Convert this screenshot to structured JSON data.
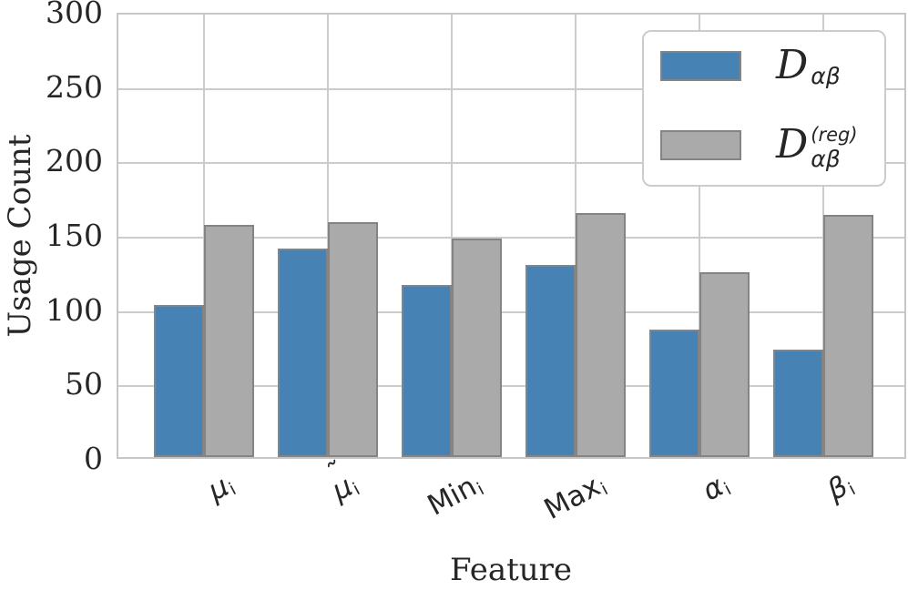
{
  "chart_data": {
    "type": "bar",
    "title": "",
    "xlabel": "Feature",
    "ylabel": "Usage Count",
    "ylim": [
      0,
      300
    ],
    "yticks": [
      0,
      50,
      100,
      150,
      200,
      250,
      300
    ],
    "grid": "both",
    "grid_color": "#cccccc",
    "spine_color": "#c6c6c6",
    "text_color": "#262626",
    "legend_position": "upper-right",
    "categories": [
      {
        "base": "μ",
        "accent": "",
        "sub": "i",
        "greek": true
      },
      {
        "base": "μ",
        "accent": "˜",
        "sub": "i",
        "greek": true
      },
      {
        "base": "Min",
        "accent": "",
        "sub": "i",
        "greek": false
      },
      {
        "base": "Max",
        "accent": "",
        "sub": "i",
        "greek": false
      },
      {
        "base": "α",
        "accent": "",
        "sub": "i",
        "greek": true
      },
      {
        "base": "β",
        "accent": "",
        "sub": "i",
        "greek": true
      }
    ],
    "series": [
      {
        "name": "D-alpha-beta",
        "label": {
          "base": "D",
          "style": "script",
          "sub": "αβ",
          "sup": ""
        },
        "color": "#4682B4",
        "edge_color": "#848484",
        "values": [
          102,
          140,
          116,
          129,
          86,
          72
        ]
      },
      {
        "name": "D-alpha-beta-reg",
        "label": {
          "base": "D",
          "style": "script",
          "sub": "αβ",
          "sup": "(reg)"
        },
        "color": "#AAAAAA",
        "edge_color": "#848484",
        "values": [
          156,
          158,
          147,
          164,
          124,
          163
        ]
      }
    ]
  },
  "layout_text": {
    "ylabel": "Usage Count",
    "xlabel": "Feature"
  }
}
